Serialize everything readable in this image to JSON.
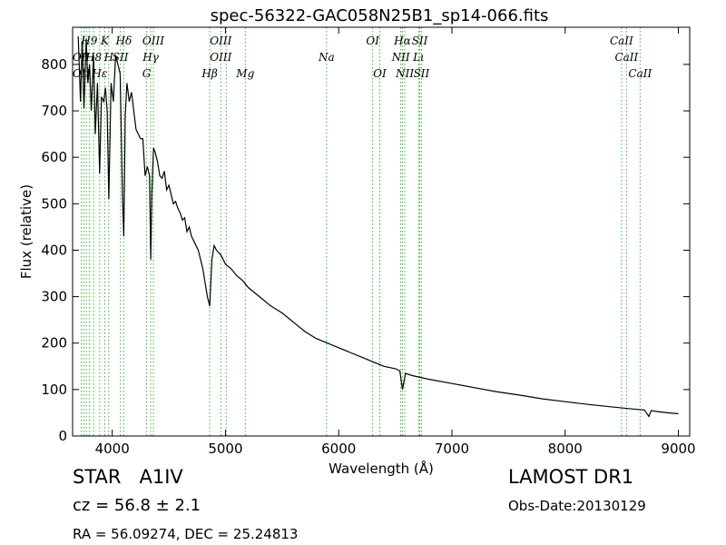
{
  "chart_data": {
    "type": "line",
    "title": "spec-56322-GAC058N25B1_sp14-066.fits",
    "xlabel": "Wavelength (Å)",
    "ylabel": "Flux (relative)",
    "xlim": [
      3650,
      9100
    ],
    "ylim": [
      0,
      880
    ],
    "xticks": [
      4000,
      5000,
      6000,
      7000,
      8000,
      9000
    ],
    "yticks": [
      0,
      100,
      200,
      300,
      400,
      500,
      600,
      700,
      800
    ],
    "grid": false,
    "colors": {
      "spectrum": "#000000",
      "line_markers": "#3cb43c"
    },
    "series": [
      {
        "x": [
          3700,
          3720,
          3735,
          3750,
          3770,
          3785,
          3800,
          3815,
          3835,
          3850,
          3870,
          3889,
          3905,
          3925,
          3940,
          3955,
          3970,
          3990,
          4010,
          4030,
          4050,
          4070,
          4090,
          4102,
          4115,
          4130,
          4150,
          4170,
          4190,
          4210,
          4230,
          4250,
          4270,
          4290,
          4310,
          4330,
          4340,
          4350,
          4365,
          4380,
          4400,
          4420,
          4440,
          4460,
          4480,
          4500,
          4520,
          4540,
          4560,
          4580,
          4600,
          4620,
          4640,
          4660,
          4680,
          4700,
          4720,
          4740,
          4760,
          4780,
          4800,
          4820,
          4840,
          4861,
          4880,
          4900,
          4920,
          4940,
          4960,
          4980,
          5000,
          5050,
          5100,
          5150,
          5200,
          5300,
          5400,
          5500,
          5600,
          5700,
          5800,
          5900,
          6000,
          6100,
          6200,
          6300,
          6400,
          6500,
          6540,
          6563,
          6590,
          6650,
          6800,
          7000,
          7200,
          7400,
          7600,
          7800,
          8000,
          8200,
          8400,
          8600,
          8700,
          8740,
          8760,
          8800,
          8900,
          9000
        ],
        "y": [
          860,
          720,
          850,
          705,
          855,
          760,
          800,
          700,
          820,
          650,
          760,
          565,
          730,
          720,
          750,
          700,
          510,
          760,
          720,
          820,
          800,
          780,
          520,
          430,
          690,
          760,
          720,
          740,
          700,
          660,
          650,
          640,
          640,
          560,
          580,
          560,
          380,
          520,
          620,
          610,
          590,
          560,
          555,
          570,
          530,
          540,
          520,
          500,
          505,
          490,
          480,
          465,
          470,
          440,
          450,
          430,
          420,
          410,
          400,
          380,
          360,
          330,
          300,
          280,
          380,
          410,
          400,
          395,
          390,
          380,
          370,
          360,
          345,
          335,
          320,
          300,
          280,
          265,
          245,
          225,
          210,
          200,
          190,
          180,
          170,
          160,
          150,
          145,
          140,
          100,
          135,
          130,
          122,
          113,
          104,
          95,
          88,
          80,
          74,
          68,
          63,
          58,
          56,
          42,
          55,
          53,
          50,
          48
        ]
      }
    ],
    "line_labels": [
      {
        "text": "OII",
        "x": 3727,
        "row": 1
      },
      {
        "text": "OII",
        "x": 3727,
        "row": 2
      },
      {
        "text": "H9",
        "x": 3797,
        "row": 0
      },
      {
        "text": "H8",
        "x": 3835,
        "row": 1
      },
      {
        "text": "Hε",
        "x": 3889,
        "row": 2
      },
      {
        "text": "K",
        "x": 3934,
        "row": 0
      },
      {
        "text": "H",
        "x": 3969,
        "row": 1
      },
      {
        "text": "Hδ",
        "x": 4102,
        "row": 0
      },
      {
        "text": "SII",
        "x": 4072,
        "row": 1
      },
      {
        "text": "OIII",
        "x": 4363,
        "row": 0
      },
      {
        "text": "Hγ",
        "x": 4340,
        "row": 1
      },
      {
        "text": "G",
        "x": 4304,
        "row": 2
      },
      {
        "text": "OIII",
        "x": 4959,
        "row": 0
      },
      {
        "text": "OIII",
        "x": 4959,
        "row": 1
      },
      {
        "text": "Hβ",
        "x": 4861,
        "row": 2
      },
      {
        "text": "Mg",
        "x": 5175,
        "row": 2
      },
      {
        "text": "Na",
        "x": 5893,
        "row": 1
      },
      {
        "text": "OI",
        "x": 6300,
        "row": 0
      },
      {
        "text": "OI",
        "x": 6363,
        "row": 2
      },
      {
        "text": "Hα",
        "x": 6563,
        "row": 0
      },
      {
        "text": "SII",
        "x": 6716,
        "row": 0
      },
      {
        "text": "NII",
        "x": 6548,
        "row": 1
      },
      {
        "text": "Lι",
        "x": 6707,
        "row": 1
      },
      {
        "text": "NII",
        "x": 6584,
        "row": 2
      },
      {
        "text": "SII",
        "x": 6731,
        "row": 2
      },
      {
        "text": "CaII",
        "x": 8498,
        "row": 0
      },
      {
        "text": "CaII",
        "x": 8542,
        "row": 1
      },
      {
        "text": "CaII",
        "x": 8662,
        "row": 2
      }
    ],
    "marker_lines": [
      3727,
      3750,
      3771,
      3797,
      3835,
      3889,
      3934,
      3969,
      4072,
      4102,
      4304,
      4340,
      4363,
      4861,
      4959,
      5007,
      5175,
      5893,
      6300,
      6363,
      6548,
      6563,
      6584,
      6707,
      6716,
      6731,
      8498,
      8542,
      8662
    ]
  },
  "info": {
    "class_label": "STAR",
    "subclass_label": "A1IV",
    "cz_text": "cz = 56.8 ± 2.1",
    "radec_text": "RA = 56.09274, DEC = 25.24813",
    "survey": "LAMOST DR1",
    "obs_date": "Obs-Date:20130129"
  }
}
